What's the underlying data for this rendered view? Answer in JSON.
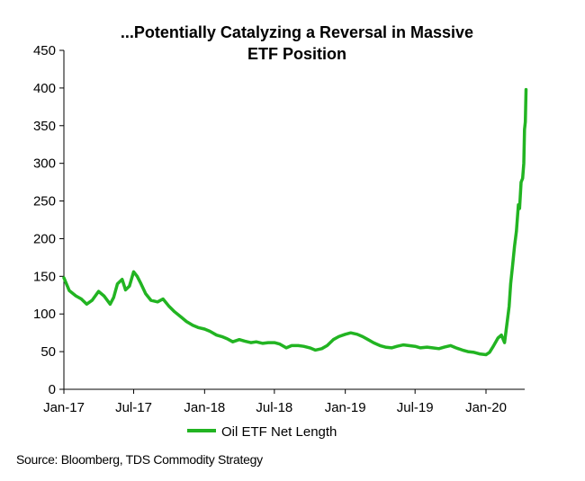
{
  "chart_data": {
    "type": "line",
    "title_lines": [
      "...Potentially  Catalyzing  a Reversal in Massive",
      "ETF Position"
    ],
    "xlabel": "",
    "ylabel": "",
    "ylim": [
      0,
      450
    ],
    "yticks": [
      0,
      50,
      100,
      150,
      200,
      250,
      300,
      350,
      400,
      450
    ],
    "xticks": [
      {
        "label": "Jan-17",
        "date": "2017-01-01"
      },
      {
        "label": "Jul-17",
        "date": "2017-07-01"
      },
      {
        "label": "Jan-18",
        "date": "2018-01-01"
      },
      {
        "label": "Jul-18",
        "date": "2018-07-01"
      },
      {
        "label": "Jan-19",
        "date": "2019-01-01"
      },
      {
        "label": "Jul-19",
        "date": "2019-07-01"
      },
      {
        "label": "Jan-20",
        "date": "2020-01-01"
      }
    ],
    "xlim": [
      "2017-01-01",
      "2020-04-30"
    ],
    "grid": false,
    "legend_position": "bottom",
    "series": [
      {
        "name": "Oil ETF Net Length",
        "color": "#22b422",
        "points": [
          [
            "2017-01-01",
            148
          ],
          [
            "2017-01-15",
            131
          ],
          [
            "2017-02-01",
            124
          ],
          [
            "2017-02-15",
            120
          ],
          [
            "2017-03-01",
            113
          ],
          [
            "2017-03-15",
            118
          ],
          [
            "2017-04-01",
            130
          ],
          [
            "2017-04-15",
            124
          ],
          [
            "2017-05-01",
            113
          ],
          [
            "2017-05-10",
            122
          ],
          [
            "2017-05-20",
            140
          ],
          [
            "2017-06-01",
            146
          ],
          [
            "2017-06-10",
            132
          ],
          [
            "2017-06-20",
            137
          ],
          [
            "2017-07-01",
            156
          ],
          [
            "2017-07-10",
            150
          ],
          [
            "2017-07-20",
            140
          ],
          [
            "2017-08-01",
            127
          ],
          [
            "2017-08-15",
            118
          ],
          [
            "2017-09-01",
            116
          ],
          [
            "2017-09-15",
            120
          ],
          [
            "2017-10-01",
            110
          ],
          [
            "2017-10-15",
            103
          ],
          [
            "2017-11-01",
            96
          ],
          [
            "2017-11-15",
            90
          ],
          [
            "2017-12-01",
            85
          ],
          [
            "2017-12-15",
            82
          ],
          [
            "2018-01-01",
            80
          ],
          [
            "2018-01-15",
            77
          ],
          [
            "2018-02-01",
            72
          ],
          [
            "2018-02-15",
            70
          ],
          [
            "2018-03-01",
            67
          ],
          [
            "2018-03-15",
            63
          ],
          [
            "2018-04-01",
            66
          ],
          [
            "2018-04-15",
            64
          ],
          [
            "2018-05-01",
            62
          ],
          [
            "2018-05-15",
            63
          ],
          [
            "2018-06-01",
            61
          ],
          [
            "2018-06-15",
            62
          ],
          [
            "2018-07-01",
            62
          ],
          [
            "2018-07-15",
            60
          ],
          [
            "2018-08-01",
            55
          ],
          [
            "2018-08-15",
            58
          ],
          [
            "2018-09-01",
            58
          ],
          [
            "2018-09-15",
            57
          ],
          [
            "2018-10-01",
            55
          ],
          [
            "2018-10-15",
            52
          ],
          [
            "2018-11-01",
            54
          ],
          [
            "2018-11-15",
            58
          ],
          [
            "2018-12-01",
            66
          ],
          [
            "2018-12-15",
            70
          ],
          [
            "2019-01-01",
            73
          ],
          [
            "2019-01-15",
            75
          ],
          [
            "2019-02-01",
            73
          ],
          [
            "2019-02-15",
            70
          ],
          [
            "2019-03-01",
            66
          ],
          [
            "2019-03-15",
            62
          ],
          [
            "2019-04-01",
            58
          ],
          [
            "2019-04-15",
            56
          ],
          [
            "2019-05-01",
            55
          ],
          [
            "2019-05-15",
            57
          ],
          [
            "2019-06-01",
            59
          ],
          [
            "2019-06-15",
            58
          ],
          [
            "2019-07-01",
            57
          ],
          [
            "2019-07-15",
            55
          ],
          [
            "2019-08-01",
            56
          ],
          [
            "2019-08-15",
            55
          ],
          [
            "2019-09-01",
            54
          ],
          [
            "2019-09-15",
            56
          ],
          [
            "2019-10-01",
            58
          ],
          [
            "2019-10-15",
            55
          ],
          [
            "2019-11-01",
            52
          ],
          [
            "2019-11-15",
            50
          ],
          [
            "2019-12-01",
            49
          ],
          [
            "2019-12-15",
            47
          ],
          [
            "2020-01-01",
            46
          ],
          [
            "2020-01-10",
            49
          ],
          [
            "2020-01-20",
            57
          ],
          [
            "2020-02-01",
            68
          ],
          [
            "2020-02-10",
            72
          ],
          [
            "2020-02-18",
            62
          ],
          [
            "2020-02-25",
            90
          ],
          [
            "2020-03-01",
            110
          ],
          [
            "2020-03-05",
            140
          ],
          [
            "2020-03-10",
            165
          ],
          [
            "2020-03-15",
            190
          ],
          [
            "2020-03-20",
            210
          ],
          [
            "2020-03-25",
            245
          ],
          [
            "2020-03-28",
            240
          ],
          [
            "2020-04-01",
            275
          ],
          [
            "2020-04-05",
            280
          ],
          [
            "2020-04-08",
            300
          ],
          [
            "2020-04-10",
            345
          ],
          [
            "2020-04-12",
            355
          ],
          [
            "2020-04-14",
            398
          ]
        ]
      }
    ],
    "source": "Source: Bloomberg, TDS Commodity Strategy"
  }
}
